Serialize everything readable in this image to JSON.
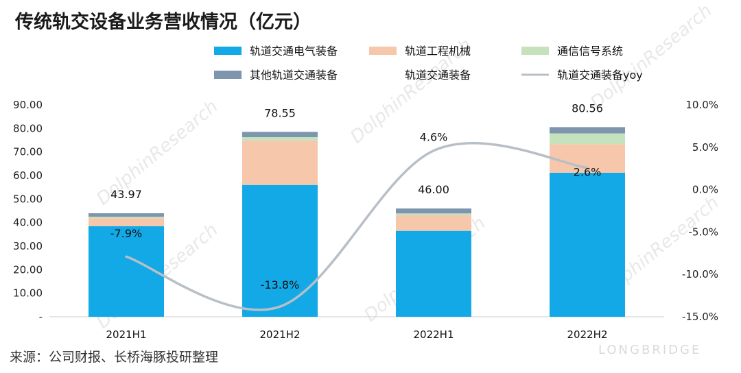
{
  "title": "传统轨交设备业务营收情况（亿元）",
  "source": "来源：公司财报、长桥海豚投研整理",
  "watermarks": {
    "dolphin": "DolphinResearch",
    "brand": "LONGBRIDGE"
  },
  "colors": {
    "rail_electric": "#12a9e6",
    "rail_engineering": "#f6c7ab",
    "signal": "#c5e2bc",
    "other": "#7d95ad",
    "yoy_line": "#b8bfc6",
    "axis": "#cccccc"
  },
  "chart_data": {
    "type": "bar",
    "stacked": true,
    "categories": [
      "2021H1",
      "2021H2",
      "2022H1",
      "2022H2"
    ],
    "series": [
      {
        "name": "轨道交通电气装备",
        "key": "rail_electric",
        "values": [
          38.5,
          56.0,
          36.5,
          61.2
        ]
      },
      {
        "name": "轨道工程机械",
        "key": "rail_engineering",
        "values": [
          3.4,
          18.8,
          6.6,
          12.1
        ]
      },
      {
        "name": "通信信号系统",
        "key": "signal",
        "values": [
          0.6,
          1.5,
          0.8,
          4.6
        ]
      },
      {
        "name": "其他轨道交通装备",
        "key": "other",
        "values": [
          1.47,
          2.25,
          2.1,
          2.66
        ]
      }
    ],
    "totals_series_name": "轨道交通装备",
    "totals": [
      43.97,
      78.55,
      46.0,
      80.56
    ],
    "total_labels": [
      "43.97",
      "78.55",
      "46.00",
      "80.56"
    ],
    "yoy": {
      "name": "轨道交通装备yoy",
      "values": [
        -7.9,
        -13.8,
        4.6,
        2.6
      ],
      "labels": [
        "-7.9%",
        "-13.8%",
        "4.6%",
        "2.6%"
      ]
    },
    "y_left": {
      "min": 0,
      "max": 90,
      "ticks": [
        0,
        10,
        20,
        30,
        40,
        50,
        60,
        70,
        80,
        90
      ],
      "tick_labels": [
        "-",
        "10.00",
        "20.00",
        "30.00",
        "40.00",
        "50.00",
        "60.00",
        "70.00",
        "80.00",
        "90.00"
      ]
    },
    "y_right": {
      "min": -15,
      "max": 10,
      "ticks": [
        -15,
        -10,
        -5,
        0,
        5,
        10
      ],
      "tick_labels": [
        "-15.0%",
        "-10.0%",
        "-5.0%",
        "0.0%",
        "5.0%",
        "10.0%"
      ]
    },
    "grid": false,
    "legend_position": "top"
  }
}
